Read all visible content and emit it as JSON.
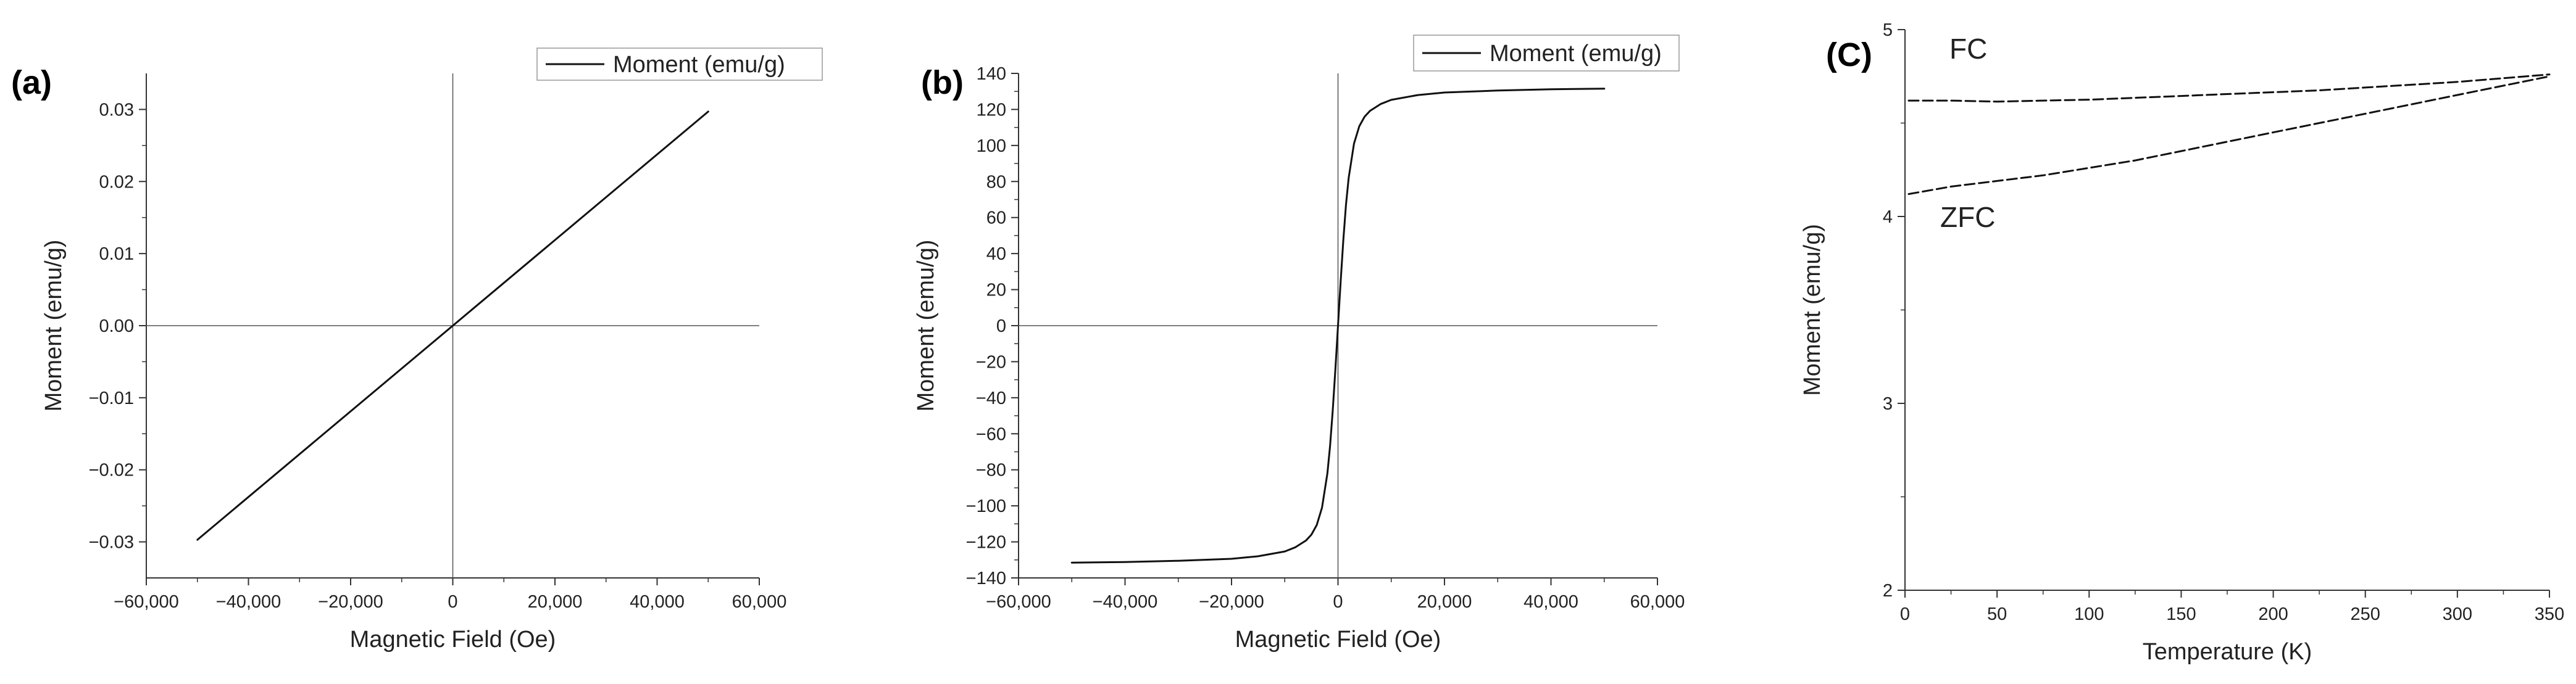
{
  "chart_data": [
    {
      "type": "line",
      "panel_label": "(a)",
      "xlabel": "Magnetic Field (Oe)",
      "ylabel": "Moment (emu/g)",
      "xlim": [
        -60000,
        60000
      ],
      "ylim": [
        -0.035,
        0.035
      ],
      "x_ticks": [
        -60000,
        -40000,
        -20000,
        0,
        20000,
        40000,
        60000
      ],
      "x_tick_labels": [
        "−60,000",
        "−40,000",
        "−20,000",
        "0",
        "20,000",
        "40,000",
        "60,000"
      ],
      "y_ticks": [
        -0.03,
        -0.02,
        -0.01,
        0,
        0.01,
        0.02,
        0.03
      ],
      "y_tick_labels": [
        "−0.03",
        "−0.02",
        "−0.01",
        "0.00",
        "0.01",
        "0.02",
        "0.03"
      ],
      "legend": [
        "Moment (emu/g)"
      ],
      "legend_position": "top-right",
      "zero_lines": true,
      "series": [
        {
          "name": "Moment (emu/g)",
          "style": "solid",
          "x": [
            -50000,
            50000
          ],
          "y": [
            -0.0297,
            0.0297
          ]
        }
      ]
    },
    {
      "type": "line",
      "panel_label": "(b)",
      "xlabel": "Magnetic Field (Oe)",
      "ylabel": "Moment (emu/g)",
      "xlim": [
        -60000,
        60000
      ],
      "ylim": [
        -140,
        140
      ],
      "x_ticks": [
        -60000,
        -40000,
        -20000,
        0,
        20000,
        40000,
        60000
      ],
      "x_tick_labels": [
        "−60,000",
        "−40,000",
        "−20,000",
        "0",
        "20,000",
        "40,000",
        "60,000"
      ],
      "y_ticks": [
        -140,
        -120,
        -100,
        -80,
        -60,
        -40,
        -20,
        0,
        20,
        40,
        60,
        80,
        100,
        120,
        140
      ],
      "y_tick_labels": [
        "−140",
        "−120",
        "−100",
        "−80",
        "−60",
        "−40",
        "−20",
        "0",
        "20",
        "40",
        "60",
        "80",
        "100",
        "120",
        "140"
      ],
      "legend": [
        "Moment (emu/g)"
      ],
      "legend_position": "top-right",
      "zero_lines": true,
      "series": [
        {
          "name": "Moment (emu/g)",
          "style": "solid",
          "x": [
            -50000,
            -40000,
            -30000,
            -20000,
            -15000,
            -10000,
            -8000,
            -6000,
            -5000,
            -4000,
            -3000,
            -2000,
            -1500,
            -1000,
            -500,
            0,
            500,
            1000,
            1500,
            2000,
            3000,
            4000,
            5000,
            6000,
            8000,
            10000,
            15000,
            20000,
            30000,
            40000,
            50000
          ],
          "y": [
            -131.5,
            -131.2,
            -130.5,
            -129.4,
            -128.0,
            -125.3,
            -123.0,
            -119.2,
            -116.0,
            -110.7,
            -101.0,
            -82.0,
            -67.0,
            -47.4,
            -24.5,
            0,
            24.5,
            47.4,
            67.0,
            82.0,
            101.0,
            110.7,
            116.0,
            119.2,
            123.0,
            125.3,
            128.0,
            129.4,
            130.5,
            131.2,
            131.5
          ]
        }
      ]
    },
    {
      "type": "line",
      "panel_label": "(C)",
      "xlabel": "Temperature (K)",
      "ylabel": "Moment (emu/g)",
      "xlim": [
        0,
        350
      ],
      "ylim": [
        2,
        5
      ],
      "x_ticks": [
        0,
        50,
        100,
        150,
        200,
        250,
        300,
        350
      ],
      "x_tick_labels": [
        "0",
        "50",
        "100",
        "150",
        "200",
        "250",
        "300",
        "350"
      ],
      "y_ticks": [
        2,
        3,
        4,
        5
      ],
      "y_tick_labels": [
        "2",
        "3",
        "4",
        "5"
      ],
      "annotations": [
        "FC",
        "ZFC"
      ],
      "series": [
        {
          "name": "FC",
          "style": "dashed",
          "x": [
            2,
            25,
            50,
            75,
            100,
            125,
            150,
            175,
            200,
            225,
            250,
            275,
            300,
            325,
            350
          ],
          "y": [
            4.62,
            4.62,
            4.615,
            4.62,
            4.625,
            4.635,
            4.645,
            4.655,
            4.665,
            4.675,
            4.69,
            4.705,
            4.72,
            4.74,
            4.76
          ]
        },
        {
          "name": "ZFC",
          "style": "dashed",
          "x": [
            2,
            25,
            50,
            75,
            100,
            125,
            150,
            175,
            200,
            225,
            250,
            275,
            300,
            325,
            350
          ],
          "y": [
            4.12,
            4.16,
            4.19,
            4.22,
            4.26,
            4.3,
            4.35,
            4.4,
            4.45,
            4.5,
            4.55,
            4.6,
            4.65,
            4.7,
            4.75
          ]
        }
      ]
    }
  ]
}
